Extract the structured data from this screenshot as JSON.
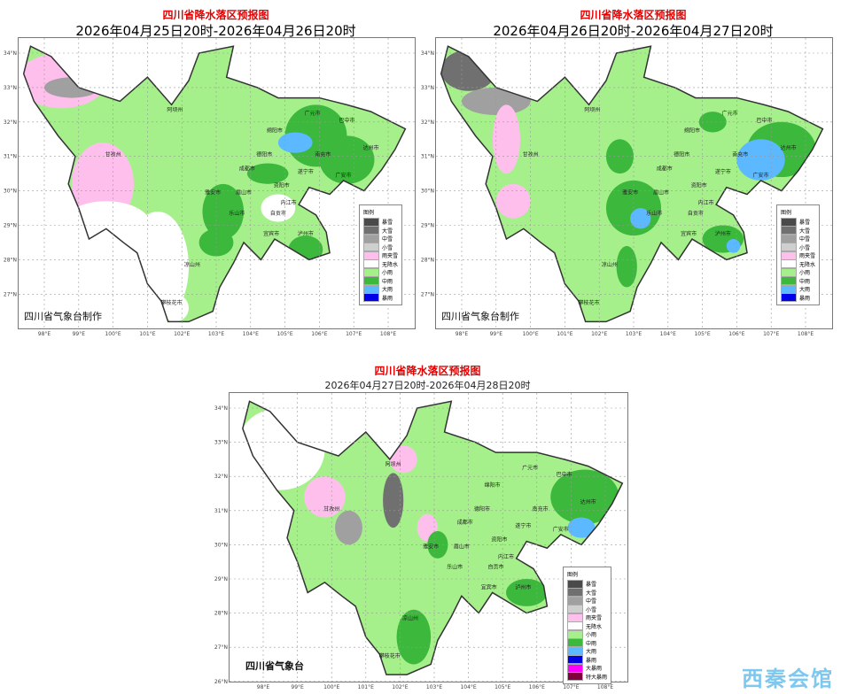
{
  "panels": [
    {
      "title": "四川省降水落区预报图",
      "subtitle": "2026年04月25日20时-2026年04月26日20时",
      "credit": "四川省气象台制作"
    },
    {
      "title": "四川省降水落区预报图",
      "subtitle": "2026年04月26日20时-2026年04月27日20时",
      "credit": "四川省气象台制作"
    },
    {
      "title": "四川省降水落区预报图",
      "subtitle": "2026年04月27日20时-2026年04月28日20时",
      "credit": "四川省气象台"
    }
  ],
  "lat_ticks": [
    "34°N",
    "33°N",
    "32°N",
    "31°N",
    "30°N",
    "29°N",
    "28°N",
    "27°N",
    "26°N"
  ],
  "lon_ticks": [
    "98°E",
    "99°E",
    "100°E",
    "101°E",
    "102°E",
    "103°E",
    "104°E",
    "105°E",
    "106°E",
    "107°E",
    "108°E"
  ],
  "legend_title": "图例",
  "legend": [
    {
      "label": "暴雪",
      "color": "#4a4a4a"
    },
    {
      "label": "大雪",
      "color": "#707070"
    },
    {
      "label": "中雪",
      "color": "#a0a0a0"
    },
    {
      "label": "小雪",
      "color": "#cfcfcf"
    },
    {
      "label": "雨夹雪",
      "color": "#ffbfec"
    },
    {
      "label": "无降水",
      "color": "#ffffff"
    },
    {
      "label": "小雨",
      "color": "#a6f08c"
    },
    {
      "label": "中雨",
      "color": "#3cb83c"
    },
    {
      "label": "大雨",
      "color": "#5cb8ff"
    },
    {
      "label": "暴雨",
      "color": "#0000e6"
    },
    {
      "label": "大暴雨",
      "color": "#ff00ff"
    },
    {
      "label": "特大暴雨",
      "color": "#800040"
    }
  ],
  "cities": [
    {
      "name": "阿坝州",
      "lon": 101.8,
      "lat": 32.3
    },
    {
      "name": "甘孜州",
      "lon": 100.0,
      "lat": 31.0
    },
    {
      "name": "广元市",
      "lon": 105.8,
      "lat": 32.2
    },
    {
      "name": "巴中市",
      "lon": 106.8,
      "lat": 32.0
    },
    {
      "name": "绵阳市",
      "lon": 104.7,
      "lat": 31.7
    },
    {
      "name": "德阳市",
      "lon": 104.4,
      "lat": 31.0
    },
    {
      "name": "南充市",
      "lon": 106.1,
      "lat": 31.0
    },
    {
      "name": "达州市",
      "lon": 107.5,
      "lat": 31.2
    },
    {
      "name": "成都市",
      "lon": 103.9,
      "lat": 30.6
    },
    {
      "name": "遂宁市",
      "lon": 105.6,
      "lat": 30.5
    },
    {
      "name": "广安市",
      "lon": 106.7,
      "lat": 30.4
    },
    {
      "name": "资阳市",
      "lon": 104.9,
      "lat": 30.1
    },
    {
      "name": "雅安市",
      "lon": 102.9,
      "lat": 29.9
    },
    {
      "name": "眉山市",
      "lon": 103.8,
      "lat": 29.9
    },
    {
      "name": "内江市",
      "lon": 105.1,
      "lat": 29.6
    },
    {
      "name": "乐山市",
      "lon": 103.6,
      "lat": 29.3
    },
    {
      "name": "自贡市",
      "lon": 104.8,
      "lat": 29.3
    },
    {
      "name": "宜宾市",
      "lon": 104.6,
      "lat": 28.7
    },
    {
      "name": "泸州市",
      "lon": 105.6,
      "lat": 28.7
    },
    {
      "name": "凉山州",
      "lon": 102.3,
      "lat": 27.8
    },
    {
      "name": "攀枝花市",
      "lon": 101.7,
      "lat": 26.7
    }
  ],
  "watermark": "西秦会馆"
}
